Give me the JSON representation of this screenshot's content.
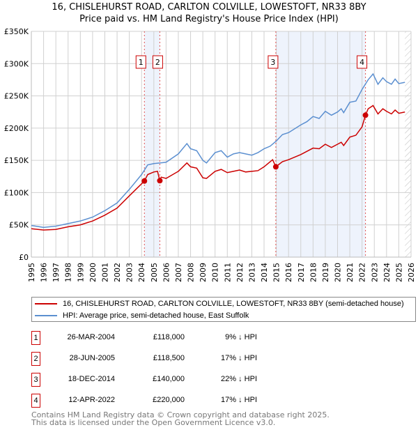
{
  "chart_data": {
    "type": "line",
    "title": "16, CHISLEHURST ROAD, CARLTON COLVILLE, LOWESTOFT, NR33 8BY",
    "subtitle": "Price paid vs. HM Land Registry's House Price Index (HPI)",
    "xlim": [
      1995,
      2026
    ],
    "ylim": [
      0,
      350000
    ],
    "yticks": [
      {
        "v": 0,
        "label": "£0"
      },
      {
        "v": 50000,
        "label": "£50K"
      },
      {
        "v": 100000,
        "label": "£100K"
      },
      {
        "v": 150000,
        "label": "£150K"
      },
      {
        "v": 200000,
        "label": "£200K"
      },
      {
        "v": 250000,
        "label": "£250K"
      },
      {
        "v": 300000,
        "label": "£300K"
      },
      {
        "v": 350000,
        "label": "£350K"
      }
    ],
    "xticks": [
      "1995",
      "1996",
      "1997",
      "1998",
      "1999",
      "2000",
      "2001",
      "2002",
      "2003",
      "2004",
      "2005",
      "2006",
      "2007",
      "2008",
      "2009",
      "2010",
      "2011",
      "2012",
      "2013",
      "2014",
      "2015",
      "2016",
      "2017",
      "2018",
      "2019",
      "2020",
      "2021",
      "2022",
      "2023",
      "2024",
      "2025",
      "2026"
    ],
    "grid": true,
    "forecast_hatch_from": 2025.5,
    "series": [
      {
        "name": "16, CHISLEHURST ROAD, CARLTON COLVILLE, LOWESTOFT, NR33 8BY (semi-detached house)",
        "color": "#cc0000",
        "x": [
          1995,
          1996,
          1997,
          1998,
          1999,
          2000,
          2001,
          2002,
          2003,
          2004.23,
          2004.5,
          2005,
          2005.3,
          2005.49,
          2005.6,
          2006,
          2007,
          2007.7,
          2008,
          2008.5,
          2009,
          2009.3,
          2010,
          2010.5,
          2011,
          2011.5,
          2012,
          2012.5,
          2013,
          2013.5,
          2014,
          2014.7,
          2014.96,
          2015.5,
          2016,
          2017,
          2018,
          2018.5,
          2019,
          2019.5,
          2020,
          2020.3,
          2020.5,
          2021,
          2021.5,
          2022,
          2022.28,
          2022.5,
          2022.9,
          2023.3,
          2023.7,
          2024,
          2024.4,
          2024.7,
          2025,
          2025.5
        ],
        "y": [
          44,
          42,
          43,
          47,
          50,
          56,
          65,
          76,
          95,
          118,
          128,
          132,
          133,
          118.5,
          124,
          122,
          133,
          146,
          140,
          138,
          123,
          122,
          133,
          136,
          131,
          133,
          135,
          132,
          133,
          134,
          140,
          151,
          140,
          148,
          151,
          159,
          169,
          168,
          175,
          170,
          175,
          178,
          173,
          186,
          189,
          202,
          220,
          230,
          235,
          222,
          230,
          226,
          222,
          228,
          223,
          225
        ]
      },
      {
        "name": "HPI: Average price, semi-detached house, East Suffolk",
        "color": "#5b8fd0",
        "x": [
          1995,
          1996,
          1997,
          1998,
          1999,
          2000,
          2001,
          2002,
          2003,
          2004,
          2004.5,
          2005,
          2005.5,
          2006,
          2007,
          2007.7,
          2008,
          2008.5,
          2009,
          2009.3,
          2010,
          2010.5,
          2011,
          2011.5,
          2012,
          2012.5,
          2013,
          2013.5,
          2014,
          2014.5,
          2015,
          2015.5,
          2016,
          2017,
          2017.5,
          2018,
          2018.5,
          2019,
          2019.5,
          2020,
          2020.3,
          2020.5,
          2021,
          2021.5,
          2022,
          2022.5,
          2022.9,
          2023.3,
          2023.7,
          2024,
          2024.4,
          2024.7,
          2025,
          2025.5
        ],
        "y": [
          49,
          46,
          48,
          52,
          56,
          62,
          72,
          84,
          105,
          128,
          143,
          145,
          146,
          147,
          160,
          176,
          168,
          165,
          150,
          146,
          162,
          165,
          155,
          160,
          162,
          160,
          158,
          162,
          168,
          172,
          180,
          190,
          193,
          205,
          210,
          218,
          215,
          226,
          220,
          225,
          230,
          224,
          240,
          242,
          260,
          275,
          284,
          268,
          278,
          272,
          268,
          276,
          269,
          271
        ]
      }
    ],
    "y_units": "thousands GBP",
    "sales": [
      {
        "label": "1",
        "x": 2004.23,
        "date": "26-MAR-2004",
        "price": "£118,000",
        "value": 118,
        "hpi": "9% ↓ HPI"
      },
      {
        "label": "2",
        "x": 2005.49,
        "date": "28-JUN-2005",
        "price": "£118,500",
        "value": 118.5,
        "hpi": "17% ↓ HPI"
      },
      {
        "label": "3",
        "x": 2014.96,
        "date": "18-DEC-2014",
        "price": "£140,000",
        "value": 140,
        "hpi": "22% ↓ HPI"
      },
      {
        "label": "4",
        "x": 2022.28,
        "date": "12-APR-2022",
        "price": "£220,000",
        "value": 220,
        "hpi": "17% ↓ HPI"
      }
    ]
  },
  "footer": {
    "line1": "Contains HM Land Registry data © Crown copyright and database right 2025.",
    "line2": "This data is licensed under the Open Government Licence v3.0."
  }
}
